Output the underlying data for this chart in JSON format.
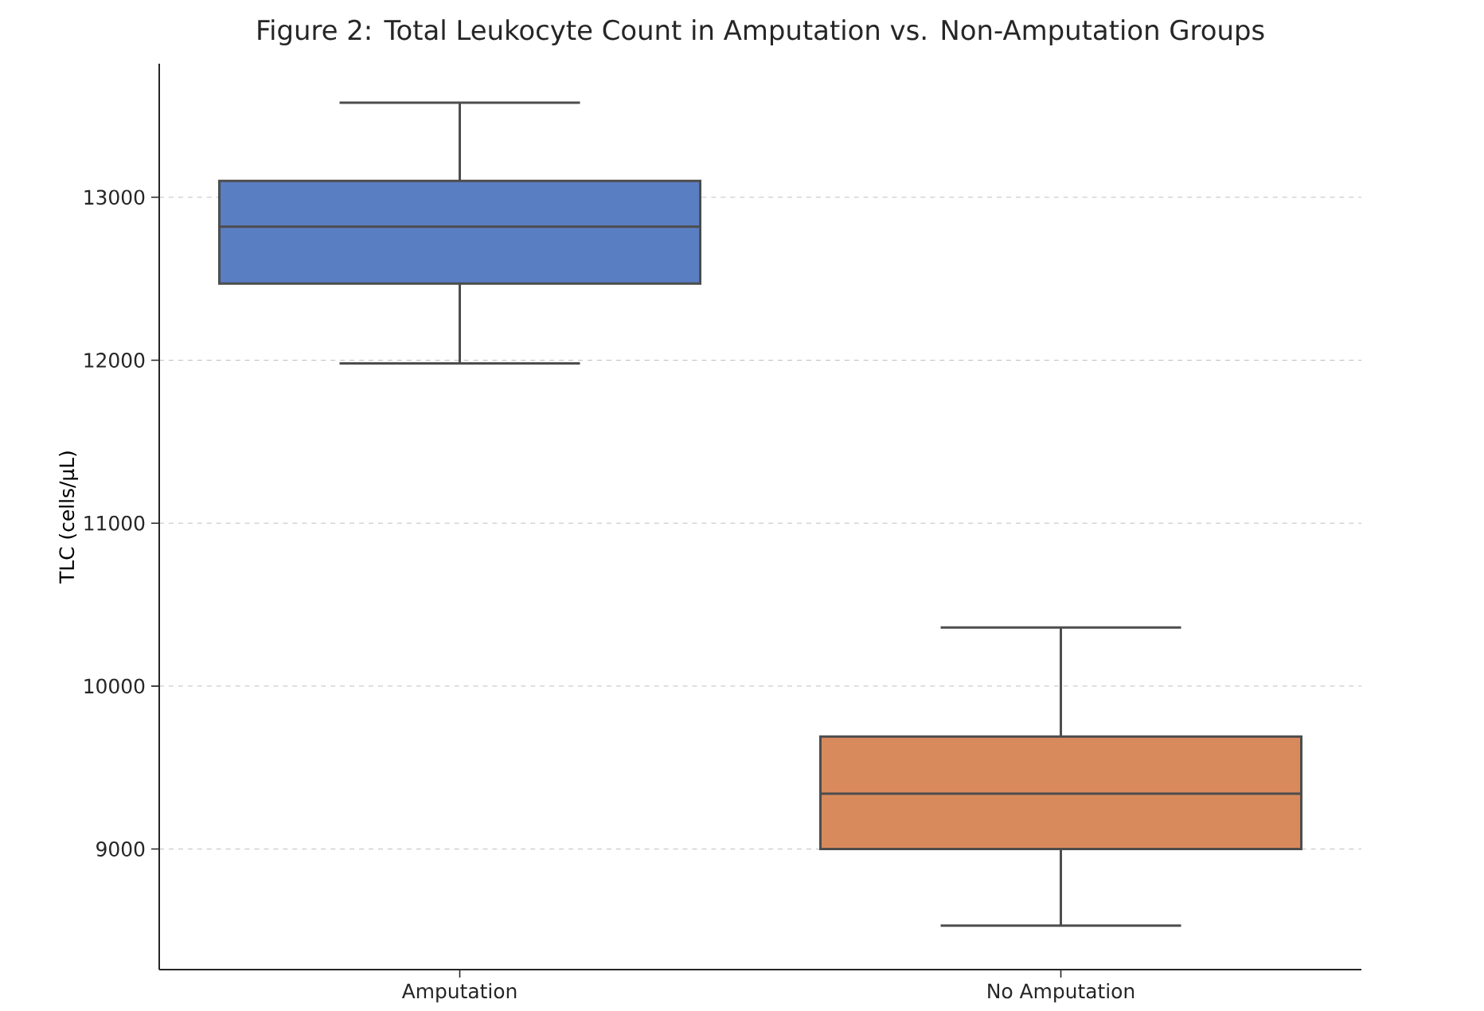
{
  "chart_data": {
    "type": "box",
    "title": "Figure 2: Total Leukocyte Count in Amputation vs. Non-Amputation Groups",
    "ylabel": "TLC (cells/µL)",
    "categories": [
      "Amputation",
      "No Amputation"
    ],
    "boxes": [
      {
        "low": 11980,
        "q1": 12470,
        "median": 12820,
        "q3": 13100,
        "high": 13580
      },
      {
        "low": 8530,
        "q1": 9000,
        "median": 9340,
        "q3": 9690,
        "high": 10360
      }
    ],
    "colors": [
      "#5a7ec2",
      "#d98a5c"
    ],
    "ylim": [
      8260,
      13820
    ],
    "yticks": [
      9000,
      10000,
      11000,
      12000,
      13000
    ],
    "grid": "y"
  }
}
